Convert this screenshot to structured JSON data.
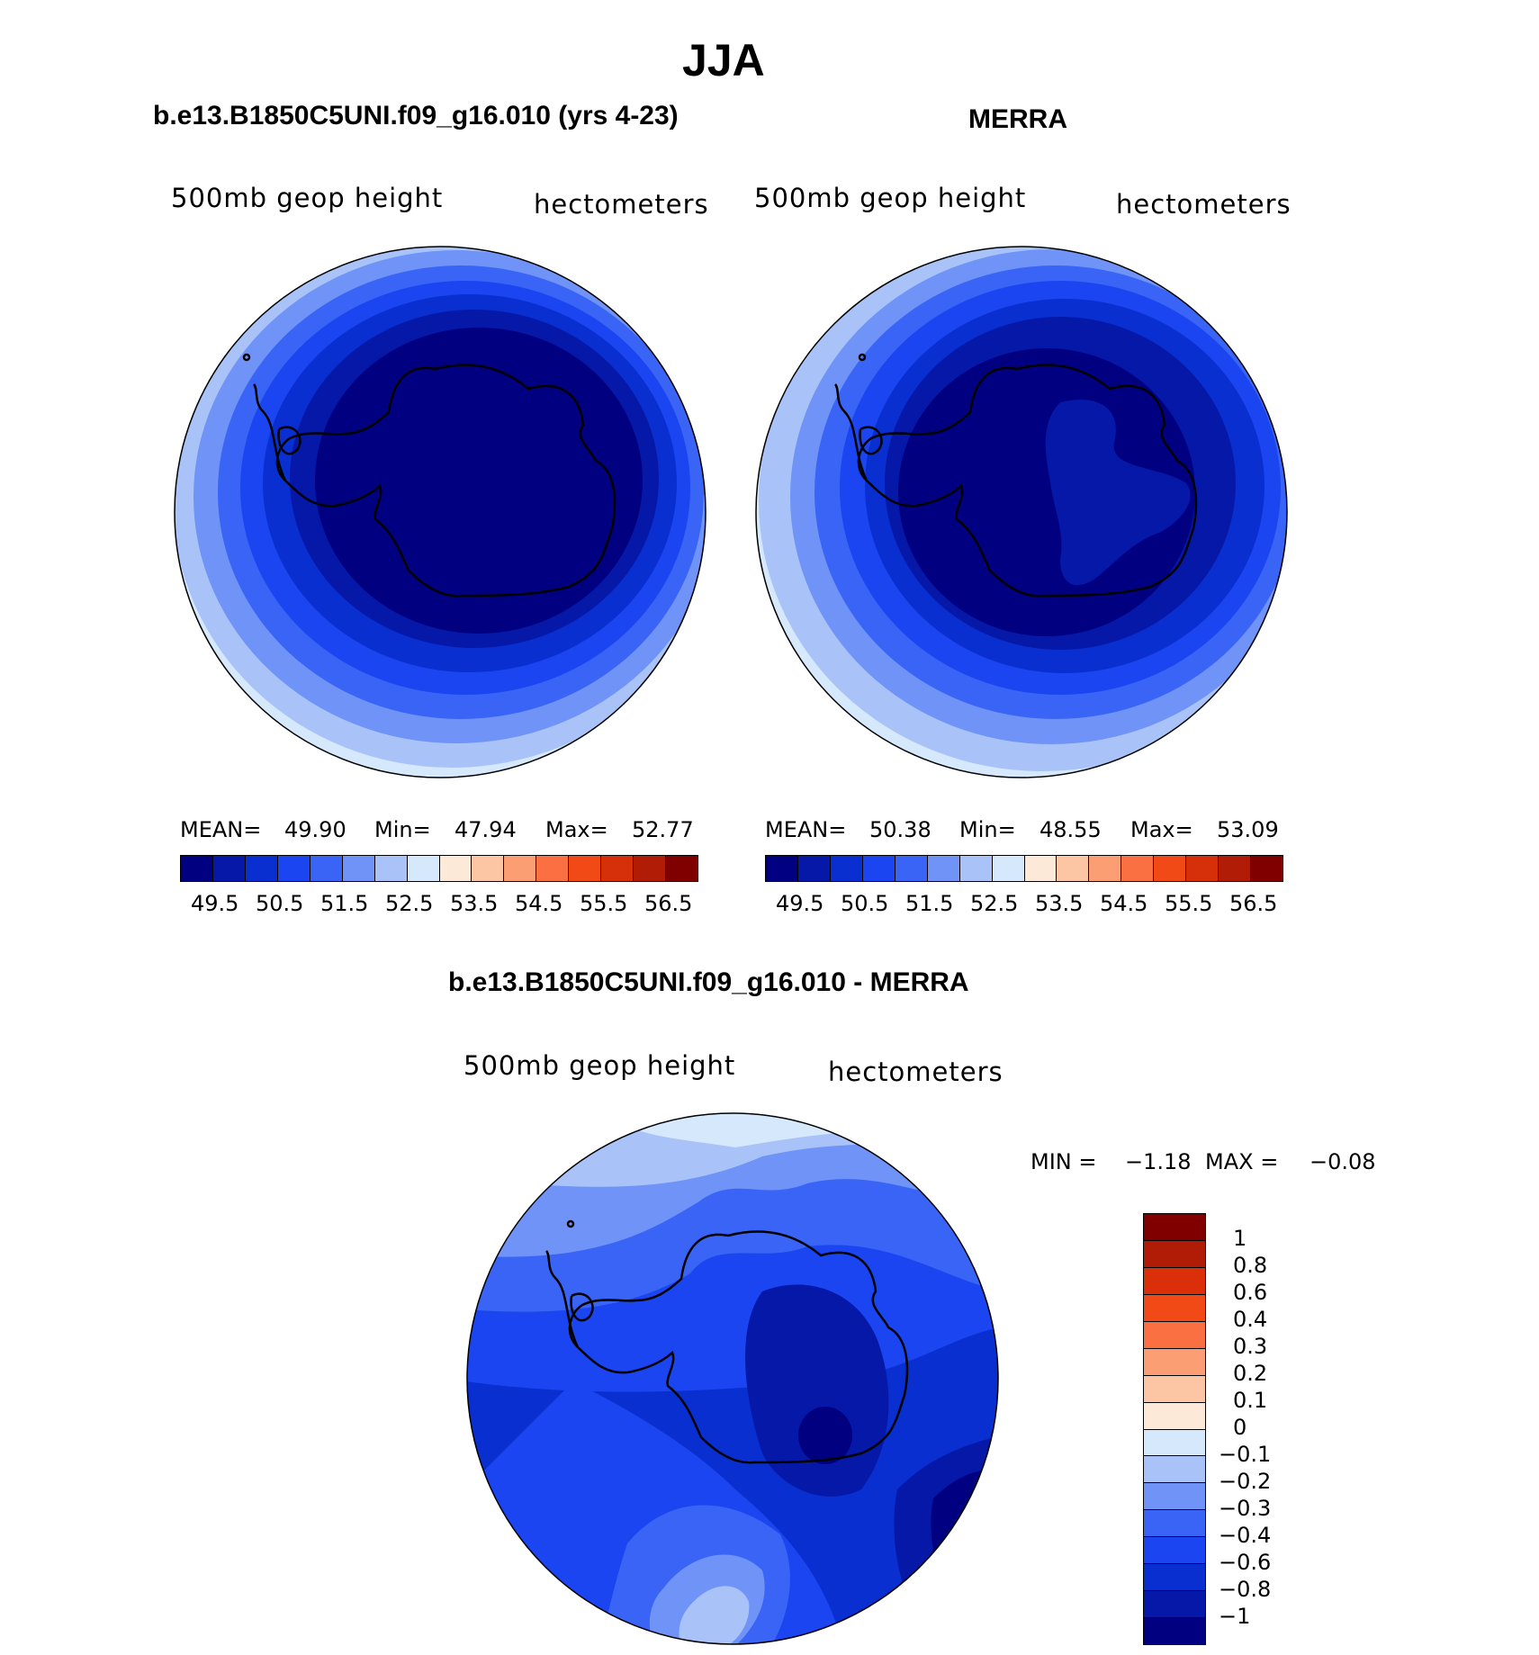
{
  "title": "JJA",
  "panels": {
    "model": {
      "subtitle": "b.e13.B1850C5UNI.f09_g16.010 (yrs 4-23)",
      "field": "500mb geop height",
      "units": "hectometers",
      "stats": {
        "mean_label": "MEAN=",
        "mean": "49.90",
        "min_label": "Min=",
        "min": "47.94",
        "max_label": "Max=",
        "max": "52.77"
      }
    },
    "obs": {
      "subtitle": "MERRA",
      "field": "500mb geop height",
      "units": "hectometers",
      "stats": {
        "mean_label": "MEAN=",
        "mean": "50.38",
        "min_label": "Min=",
        "min": "48.55",
        "max_label": "Max=",
        "max": "53.09"
      }
    },
    "diff": {
      "subtitle": "b.e13.B1850C5UNI.f09_g16.010 - MERRA",
      "field": "500mb geop height",
      "units": "hectometers",
      "stats": {
        "min_label": "MIN =",
        "min": "−1.18",
        "max_label": "MAX =",
        "max": "−0.08"
      }
    }
  },
  "colorbar_abs": {
    "colors": [
      "#000080",
      "#0518a8",
      "#0a2fd0",
      "#1a45f0",
      "#3a64f5",
      "#6f93f7",
      "#a9c3f8",
      "#d6e8fb",
      "#fde9d8",
      "#fcc5a4",
      "#fb9e74",
      "#fa7042",
      "#f24a16",
      "#d5300a",
      "#b01c06",
      "#800000"
    ],
    "ticks": [
      "49.5",
      "50.5",
      "51.5",
      "52.5",
      "53.5",
      "54.5",
      "55.5",
      "56.5"
    ]
  },
  "colorbar_diff": {
    "colors_top_to_bottom": [
      "#800000",
      "#b01c06",
      "#da2f08",
      "#f24a16",
      "#fa7042",
      "#fb9e74",
      "#fcc5a4",
      "#fde9d8",
      "#d6e8fb",
      "#a9c3f8",
      "#6f93f7",
      "#3a64f5",
      "#1a45f0",
      "#0a2fd0",
      "#0518a8",
      "#000080"
    ],
    "ticks_top_to_bottom": [
      "1",
      "0.8",
      "0.6",
      "0.4",
      "0.3",
      "0.2",
      "0.1",
      "0",
      "−0.1",
      "−0.2",
      "−0.3",
      "−0.4",
      "−0.6",
      "−0.8",
      "−1"
    ]
  }
}
